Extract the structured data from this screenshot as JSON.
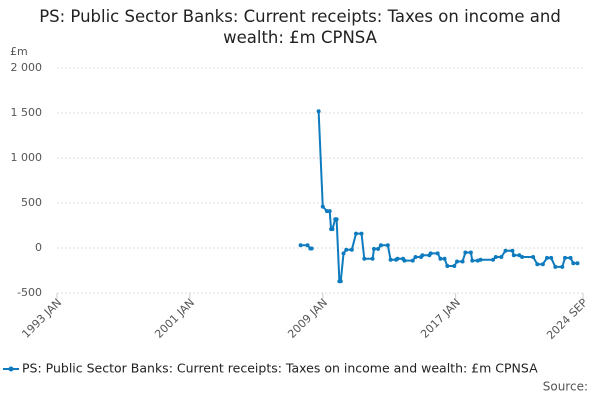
{
  "chart_data": {
    "type": "line",
    "title": "PS: Public Sector Banks: Current receipts: Taxes on income and wealth: £m CPNSA",
    "y_label": "£m",
    "source": "Source:",
    "x": [
      "2007 SEP",
      "2008 FEB",
      "2008 APR",
      "2008 MAY",
      "2008 JUL",
      "2008 OCT",
      "2009 JAN",
      "2009 APR",
      "2009 JUN",
      "2009 JUL",
      "2009 AUG",
      "2009 OCT",
      "2009 NOV",
      "2010 JAN",
      "2010 FEB",
      "2010 APR",
      "2010 JUN",
      "2010 OCT",
      "2011 JAN",
      "2011 MAY",
      "2011 JUL",
      "2012 JAN",
      "2012 FEB",
      "2012 MAY",
      "2012 JUL",
      "2012 DEC",
      "2013 FEB",
      "2013 JUN",
      "2013 JUL",
      "2013 NOV",
      "2013 DEC",
      "2014 JUN",
      "2014 AUG",
      "2014 DEC",
      "2015 JAN",
      "2015 JUN",
      "2015 JUL",
      "2015 DEC",
      "2016 FEB",
      "2016 MAY",
      "2016 JUL",
      "2016 DEC",
      "2017 FEB",
      "2017 JUN",
      "2017 AUG",
      "2017 DEC",
      "2018 JAN",
      "2018 MAY",
      "2018 JUL",
      "2019 APR",
      "2019 JUN",
      "2019 OCT",
      "2020 JAN",
      "2020 JUN",
      "2020 JUL",
      "2020 NOV",
      "2021 JAN",
      "2021 SEP",
      "2021 DEC",
      "2022 APR",
      "2022 JUL",
      "2022 OCT",
      "2023 JAN",
      "2023 JUN",
      "2023 AUG",
      "2023 DEC",
      "2024 FEB",
      "2024 MAY"
    ],
    "series": [
      {
        "name": "PS: Public Sector Banks: Current receipts: Taxes on income and wealth: £m CPNSA",
        "color": "#0f7bbf",
        "values": [
          30,
          30,
          -5,
          -5,
          null,
          1520,
          460,
          410,
          410,
          210,
          210,
          320,
          320,
          -370,
          -370,
          -60,
          -20,
          -20,
          160,
          160,
          -120,
          -120,
          -10,
          -10,
          30,
          30,
          -130,
          -130,
          -120,
          -120,
          -140,
          -140,
          -100,
          -100,
          -80,
          -80,
          -60,
          -60,
          -120,
          -120,
          -200,
          -200,
          -150,
          -150,
          -50,
          -50,
          -140,
          -140,
          -130,
          -130,
          -100,
          -100,
          -30,
          -30,
          -80,
          -80,
          -100,
          -100,
          -180,
          -180,
          -110,
          -110,
          -210,
          -210,
          -110,
          -110,
          -170,
          -170
        ]
      }
    ],
    "xlim": [
      "1993 JAN",
      "2024 SEP"
    ],
    "xticks": [
      "1993 JAN",
      "2001 JAN",
      "2009 JAN",
      "2017 JAN",
      "2024 SEP"
    ],
    "ylim": [
      -500,
      2000
    ],
    "yticks": [
      {
        "value": -500,
        "label": "-500"
      },
      0,
      500,
      {
        "value": 1000,
        "label": "1 000"
      },
      {
        "value": 1500,
        "label": "1 500"
      },
      {
        "value": 2000,
        "label": "2 000"
      }
    ],
    "grid": true
  }
}
